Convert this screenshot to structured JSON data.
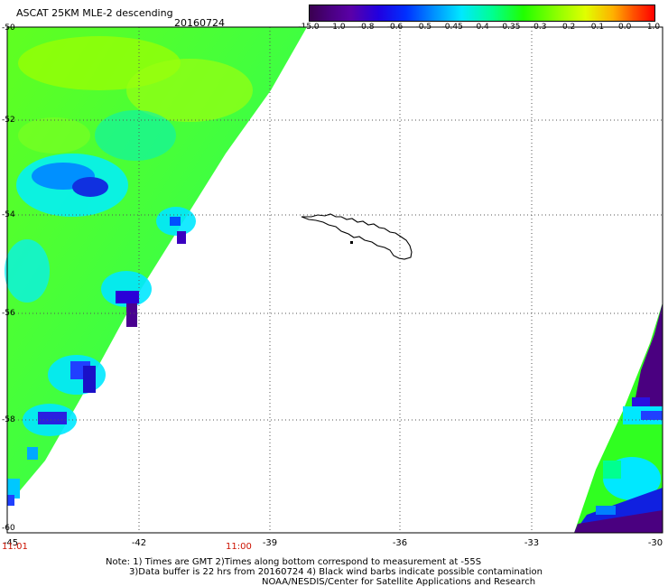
{
  "header": {
    "title": "ASCAT 25KM MLE-2 descending",
    "date": "20160724"
  },
  "colorbar": {
    "labels": [
      "-15.0",
      "-1.0",
      "-0.8",
      "-0.6",
      "-0.5",
      "-0.45",
      "-0.4",
      "-0.35",
      "-0.3",
      "-0.2",
      "-0.1",
      "0.0",
      "1.0"
    ],
    "colors": [
      "#3a0050",
      "#5a00a0",
      "#2a00d8",
      "#0030ff",
      "#0090ff",
      "#00e8ff",
      "#00ff90",
      "#20ff00",
      "#90ff00",
      "#e0ff00",
      "#ffb000",
      "#ff5000",
      "#ff0000"
    ]
  },
  "axes": {
    "y_ticks": [
      "-50",
      "-52",
      "-54",
      "-56",
      "-58",
      "-60"
    ],
    "x_ticks": [
      "-45",
      "-42",
      "-39",
      "-36",
      "-33",
      "-30"
    ]
  },
  "time_labels": {
    "left": "11:01",
    "middle": "11:00"
  },
  "notes": {
    "line1": "Note: 1) Times are GMT 2)Times along bottom correspond to measurement at -55S",
    "line2": "3)Data buffer is 22 hrs from 20160724 4) Black wind barbs indicate possible contamination",
    "line3": "NOAA/NESDIS/Center for Satellite Applications and Research"
  }
}
